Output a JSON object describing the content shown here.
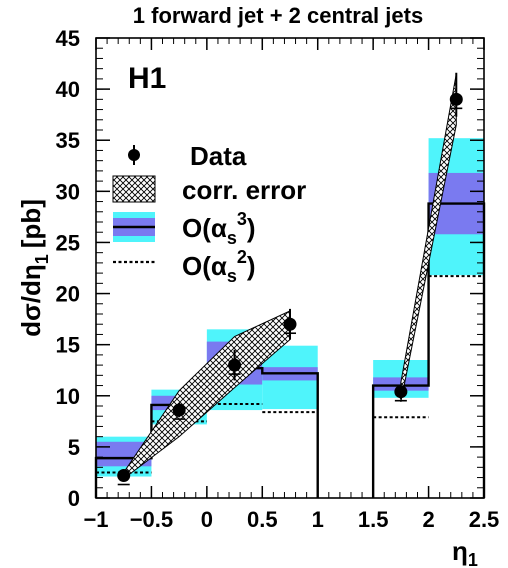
{
  "chart_data": {
    "type": "line",
    "title": "1 forward jet + 2 central jets",
    "experiment": "H1",
    "ylabel": "dσ/dη",
    "ylabel_sub": "1",
    "ylabel_unit": "[pb]",
    "xlabel": "η",
    "xlabel_sub": "1",
    "xlim": [
      -1,
      2.5
    ],
    "ylim": [
      0,
      45
    ],
    "xticks": [
      "−1",
      "−0.5",
      "0",
      "0.5",
      "1",
      "1.5",
      "2",
      "2.5"
    ],
    "xtick_values": [
      -1,
      -0.5,
      0,
      0.5,
      1,
      1.5,
      2,
      2.5
    ],
    "yticks": [
      "0",
      "5",
      "10",
      "15",
      "20",
      "25",
      "30",
      "35",
      "40",
      "45"
    ],
    "ytick_values": [
      0,
      5,
      10,
      15,
      20,
      25,
      30,
      35,
      40,
      45
    ],
    "legend": {
      "data": "Data",
      "corr": "corr. error",
      "nlo": "O(α",
      "nlo_sub": "s",
      "nlo_sup": "3",
      "nlo_close": ")",
      "lo": "O(α",
      "lo_sub": "s",
      "lo_sup": "2",
      "lo_close": ")"
    },
    "series": [
      {
        "name": "Data",
        "x": [
          -0.75,
          -0.25,
          0.25,
          0.75,
          1.75,
          2.25
        ],
        "y": [
          2.2,
          8.6,
          13.0,
          17.0,
          10.4,
          39.0
        ],
        "err_low": [
          0.3,
          0.7,
          1.5,
          1.5,
          0.7,
          1.7
        ],
        "err_high": [
          0.3,
          0.7,
          1.5,
          1.5,
          0.7,
          2.6
        ]
      },
      {
        "name": "corr. error",
        "segments": [
          {
            "x": [
              -0.75,
              -0.25,
              0.25,
              0.75
            ],
            "low": [
              1.9,
              6.0,
              10.8,
              15.5
            ],
            "high": [
              2.5,
              10.5,
              15.8,
              18.3
            ]
          },
          {
            "x": [
              1.75,
              2.25
            ],
            "low": [
              9.4,
              36.5
            ],
            "high": [
              11.3,
              41.5
            ]
          }
        ]
      },
      {
        "name": "O(αs³)",
        "bins": [
          [
            -1,
            -0.5
          ],
          [
            -0.5,
            0
          ],
          [
            0,
            0.5
          ],
          [
            0.5,
            1
          ],
          [
            1.5,
            2
          ],
          [
            2,
            2.5
          ]
        ],
        "central": [
          3.9,
          9.1,
          12.7,
          12.2,
          11.0,
          28.8
        ],
        "outer_low": [
          2.1,
          7.2,
          8.6,
          8.7,
          9.8,
          21.8
        ],
        "outer_high": [
          6.0,
          10.6,
          16.5,
          14.9,
          13.5,
          35.2
        ],
        "inner_low": [
          3.1,
          8.6,
          11.1,
          11.5,
          10.5,
          25.8
        ],
        "inner_high": [
          5.5,
          10.0,
          15.3,
          12.8,
          11.8,
          31.8
        ]
      },
      {
        "name": "O(αs²)",
        "bins": [
          [
            -1,
            -0.5
          ],
          [
            -0.5,
            0
          ],
          [
            0,
            0.5
          ],
          [
            0.5,
            1
          ],
          [
            1.5,
            2
          ],
          [
            2,
            2.5
          ]
        ],
        "values": [
          2.5,
          7.5,
          9.2,
          8.4,
          7.9,
          21.7
        ]
      }
    ],
    "colors": {
      "outer_band": "#4ff4fb",
      "inner_band": "#7a7af0",
      "axis": "#000000"
    },
    "legend_placement": "left"
  }
}
